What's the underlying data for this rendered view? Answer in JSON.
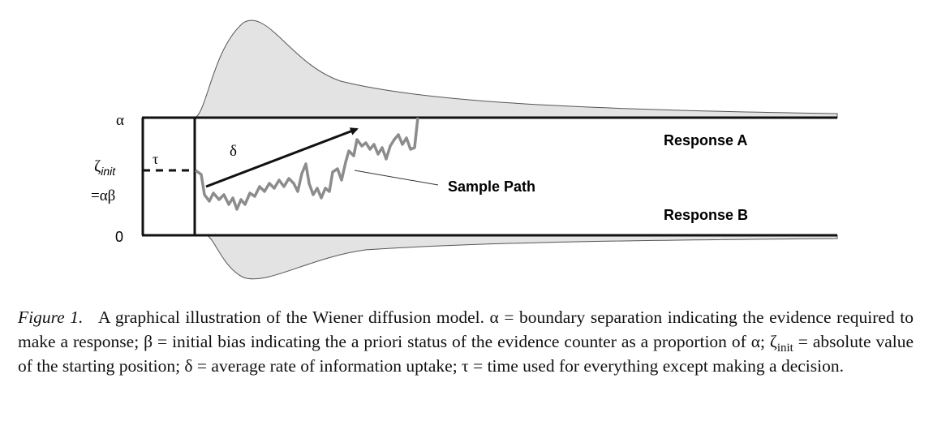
{
  "labels": {
    "alpha": "α",
    "zeta": "ζ",
    "zeta_sub": "init",
    "bias": "=αβ",
    "zero": "0",
    "tau": "τ",
    "delta": "δ",
    "response_a": "Response A",
    "response_b": "Response B",
    "sample_path": "Sample Path"
  },
  "caption": {
    "label": "Figure 1.",
    "text_1": "A graphical illustration of the Wiener diffusion model. α = boundary separation indicating the evidence required to make a response; β = initial bias indicating the a priori status of the evidence counter as a proportion of α; ζ",
    "subscript": "init",
    "text_2": "= absolute value of the starting position; δ = average rate of information uptake; τ = time used for everything except making a decision."
  }
}
